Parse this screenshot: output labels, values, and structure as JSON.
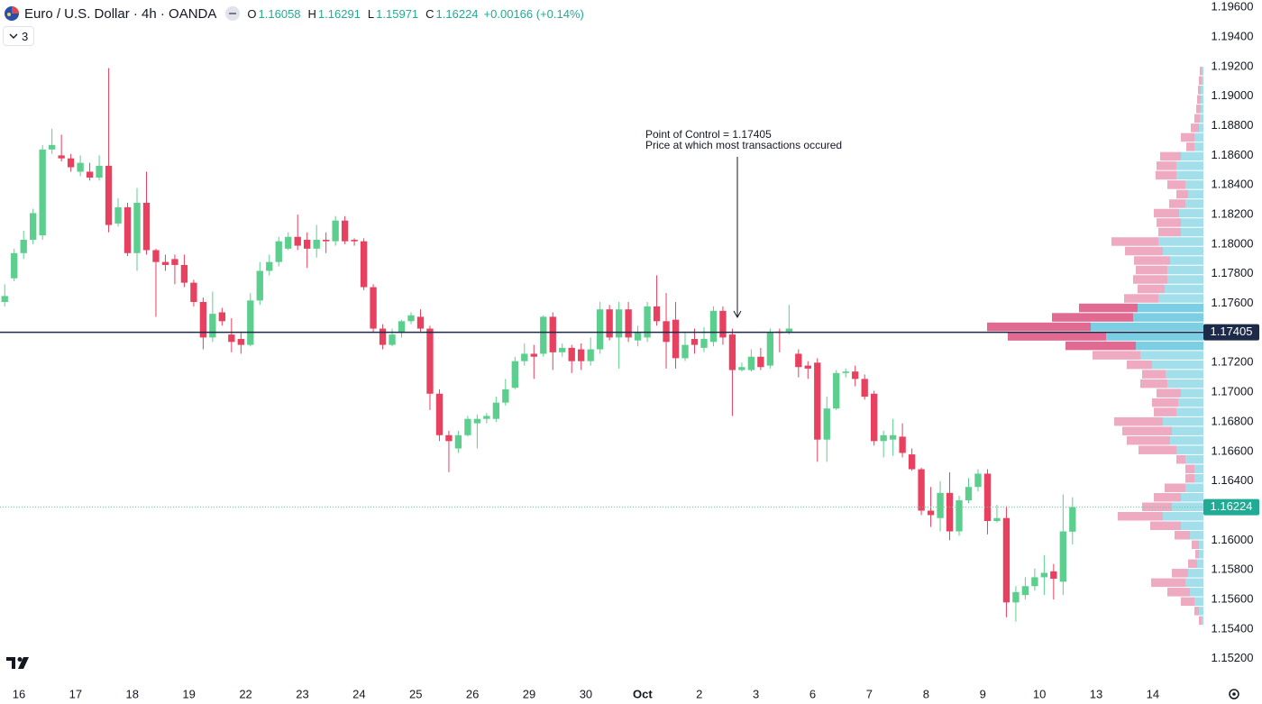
{
  "header": {
    "symbol": "Euro / U.S. Dollar · 4h · OANDA",
    "ohlc_labels": [
      "O",
      "H",
      "L",
      "C"
    ],
    "change": "+0.00166 (+0.14%)",
    "indicators_count": "3"
  },
  "chart_data": {
    "type": "candlestick",
    "up_color": "#5ccf8e",
    "down_color": "#e8405f",
    "xlim": [
      -0.5,
      126.85
    ],
    "ylim": [
      1.1504,
      1.1965
    ],
    "xticks": [
      {
        "value": 1.5,
        "label": "16"
      },
      {
        "value": 7.5,
        "label": "17"
      },
      {
        "value": 13.5,
        "label": "18"
      },
      {
        "value": 19.5,
        "label": "19"
      },
      {
        "value": 25.5,
        "label": "22"
      },
      {
        "value": 31.5,
        "label": "23"
      },
      {
        "value": 37.5,
        "label": "24"
      },
      {
        "value": 43.5,
        "label": "25"
      },
      {
        "value": 49.5,
        "label": "26"
      },
      {
        "value": 55.5,
        "label": "29"
      },
      {
        "value": 61.5,
        "label": "30"
      },
      {
        "value": 67.5,
        "label": "Oct"
      },
      {
        "value": 73.5,
        "label": "2"
      },
      {
        "value": 79.5,
        "label": "3"
      },
      {
        "value": 85.5,
        "label": "6"
      },
      {
        "value": 91.5,
        "label": "7"
      },
      {
        "value": 97.5,
        "label": "8"
      },
      {
        "value": 103.5,
        "label": "9"
      },
      {
        "value": 109.5,
        "label": "10"
      },
      {
        "value": 115.5,
        "label": "13"
      },
      {
        "value": 121.5,
        "label": "14"
      }
    ],
    "yticks": [
      {
        "value": 1.196,
        "label": "1.19600"
      },
      {
        "value": 1.194,
        "label": "1.19400"
      },
      {
        "value": 1.192,
        "label": "1.19200"
      },
      {
        "value": 1.19,
        "label": "1.19000"
      },
      {
        "value": 1.188,
        "label": "1.18800"
      },
      {
        "value": 1.186,
        "label": "1.18600"
      },
      {
        "value": 1.184,
        "label": "1.18400"
      },
      {
        "value": 1.182,
        "label": "1.18200"
      },
      {
        "value": 1.18,
        "label": "1.18000"
      },
      {
        "value": 1.178,
        "label": "1.17800"
      },
      {
        "value": 1.176,
        "label": "1.17600"
      },
      {
        "value": 1.172,
        "label": "1.17200"
      },
      {
        "value": 1.17,
        "label": "1.17000"
      },
      {
        "value": 1.168,
        "label": "1.16800"
      },
      {
        "value": 1.166,
        "label": "1.16600"
      },
      {
        "value": 1.164,
        "label": "1.16400"
      },
      {
        "value": 1.16,
        "label": "1.16000"
      },
      {
        "value": 1.158,
        "label": "1.15800"
      },
      {
        "value": 1.156,
        "label": "1.15600"
      },
      {
        "value": 1.154,
        "label": "1.15400"
      },
      {
        "value": 1.152,
        "label": "1.15200"
      }
    ],
    "grid": false,
    "open": [
      1.1761,
      1.1777,
      1.1794,
      1.1803,
      1.1806,
      1.1864,
      1.186,
      1.1858,
      1.1849,
      1.1849,
      1.1845,
      1.1853,
      1.1814,
      1.1825,
      1.1794,
      1.1828,
      1.1796,
      1.1788,
      1.179,
      1.1786,
      1.1774,
      1.1761,
      1.1737,
      1.1754,
      1.1739,
      1.1736,
      1.1732,
      1.1762,
      1.1782,
      1.1788,
      1.1797,
      1.1805,
      1.1803,
      1.1797,
      1.1803,
      1.1802,
      1.1816,
      1.1803,
      1.1802,
      1.1771,
      1.1743,
      1.1732,
      1.174,
      1.1748,
      1.1751,
      1.1743,
      1.1699,
      1.1671,
      1.1662,
      1.1671,
      1.1679,
      1.1682,
      1.1682,
      1.1693,
      1.1703,
      1.1721,
      1.1726,
      1.1726,
      1.1751,
      1.1727,
      1.173,
      1.1729,
      1.1721,
      1.1729,
      1.1756,
      1.1737,
      1.1756,
      1.1735,
      1.1737,
      1.1758,
      1.1748,
      1.1749,
      1.1723,
      1.1736,
      1.173,
      1.1734,
      1.1755,
      1.1739,
      1.1715,
      1.1715,
      1.1724,
      1.1718,
      1.1741,
      1.1741,
      1.1726,
      1.1718,
      1.172,
      1.1668,
      1.1689,
      1.1713,
      1.1714,
      1.1709,
      1.1699,
      1.1667,
      1.1668,
      1.167,
      1.1658,
      1.1648,
      1.162,
      1.1615,
      1.1632,
      1.1606,
      1.1627,
      1.1636,
      1.1645,
      1.1613,
      1.1615,
      1.1558,
      1.1563,
      1.1569,
      1.1575,
      1.1579,
      1.1572,
      1.16058
    ],
    "high": [
      1.1773,
      1.1797,
      1.1809,
      1.1824,
      1.1867,
      1.1878,
      1.1874,
      1.1861,
      1.186,
      1.1855,
      1.186,
      1.1919,
      1.1831,
      1.1828,
      1.1838,
      1.1849,
      1.1797,
      1.1793,
      1.1793,
      1.1793,
      1.1776,
      1.1764,
      1.1768,
      1.1757,
      1.175,
      1.174,
      1.1767,
      1.1788,
      1.1793,
      1.1805,
      1.1808,
      1.182,
      1.1808,
      1.1813,
      1.1808,
      1.1819,
      1.1819,
      1.1804,
      1.1804,
      1.1773,
      1.1746,
      1.1743,
      1.1749,
      1.1754,
      1.1756,
      1.1745,
      1.1702,
      1.1674,
      1.1674,
      1.1684,
      1.1685,
      1.1686,
      1.1697,
      1.1709,
      1.1724,
      1.1733,
      1.1732,
      1.1752,
      1.1754,
      1.1733,
      1.1732,
      1.1733,
      1.1737,
      1.1761,
      1.1759,
      1.1761,
      1.1761,
      1.1745,
      1.1761,
      1.1779,
      1.1767,
      1.1761,
      1.174,
      1.1743,
      1.1744,
      1.1758,
      1.1758,
      1.1743,
      1.172,
      1.1729,
      1.173,
      1.1743,
      1.1743,
      1.1759,
      1.1729,
      1.1721,
      1.1723,
      1.1697,
      1.1715,
      1.1716,
      1.1718,
      1.1712,
      1.1701,
      1.1674,
      1.1682,
      1.1679,
      1.1662,
      1.1649,
      1.1636,
      1.164,
      1.1646,
      1.163,
      1.1642,
      1.1648,
      1.1648,
      1.1624,
      1.1623,
      1.1569,
      1.1575,
      1.1581,
      1.159,
      1.1584,
      1.1631,
      1.16291
    ],
    "low": [
      1.1758,
      1.1775,
      1.179,
      1.18,
      1.1803,
      1.1861,
      1.1856,
      1.1849,
      1.1846,
      1.1843,
      1.1843,
      1.1808,
      1.1812,
      1.1792,
      1.1782,
      1.1793,
      1.1751,
      1.1782,
      1.1773,
      1.1771,
      1.1758,
      1.1729,
      1.1734,
      1.1745,
      1.1727,
      1.1726,
      1.1731,
      1.1759,
      1.1779,
      1.1785,
      1.1796,
      1.1796,
      1.1784,
      1.1791,
      1.1794,
      1.1799,
      1.18,
      1.1799,
      1.1769,
      1.174,
      1.1729,
      1.1731,
      1.1737,
      1.1746,
      1.1741,
      1.1688,
      1.1667,
      1.1646,
      1.1659,
      1.167,
      1.1662,
      1.1679,
      1.168,
      1.1691,
      1.1702,
      1.1718,
      1.1709,
      1.1724,
      1.1715,
      1.1724,
      1.1713,
      1.1715,
      1.1718,
      1.1726,
      1.1735,
      1.1716,
      1.1734,
      1.1731,
      1.1734,
      1.1745,
      1.1716,
      1.1716,
      1.1721,
      1.1726,
      1.1727,
      1.1731,
      1.1732,
      1.1684,
      1.1714,
      1.1714,
      1.1715,
      1.1716,
      1.1727,
      1.1739,
      1.171,
      1.1709,
      1.1653,
      1.1653,
      1.1688,
      1.171,
      1.1704,
      1.1695,
      1.1664,
      1.1656,
      1.1657,
      1.1656,
      1.1647,
      1.1617,
      1.1609,
      1.1606,
      1.16,
      1.1603,
      1.1625,
      1.1633,
      1.1604,
      1.1612,
      1.1548,
      1.1545,
      1.156,
      1.1566,
      1.1563,
      1.156,
      1.1563,
      1.15971
    ],
    "close": [
      1.1765,
      1.1794,
      1.1803,
      1.1821,
      1.1864,
      1.1867,
      1.1858,
      1.1852,
      1.1855,
      1.1845,
      1.1853,
      1.1813,
      1.1825,
      1.1794,
      1.1828,
      1.1796,
      1.1788,
      1.1786,
      1.1786,
      1.1774,
      1.1761,
      1.1737,
      1.1753,
      1.1748,
      1.1734,
      1.1732,
      1.1762,
      1.1782,
      1.1788,
      1.1802,
      1.1805,
      1.1799,
      1.1797,
      1.1803,
      1.1802,
      1.1816,
      1.1802,
      1.1802,
      1.1771,
      1.1743,
      1.1732,
      1.1739,
      1.1748,
      1.1752,
      1.1743,
      1.1699,
      1.1671,
      1.1667,
      1.1671,
      1.1682,
      1.1682,
      1.1684,
      1.1693,
      1.1702,
      1.1721,
      1.1726,
      1.1724,
      1.1751,
      1.1727,
      1.173,
      1.1721,
      1.1721,
      1.1729,
      1.1756,
      1.1737,
      1.1756,
      1.1737,
      1.174,
      1.1758,
      1.1748,
      1.1734,
      1.1723,
      1.1732,
      1.1732,
      1.1736,
      1.1755,
      1.1737,
      1.1715,
      1.1717,
      1.1724,
      1.1717,
      1.174,
      1.174,
      1.1743,
      1.1717,
      1.1716,
      1.1668,
      1.1689,
      1.1713,
      1.1714,
      1.1709,
      1.1697,
      1.1667,
      1.1671,
      1.1671,
      1.1659,
      1.1648,
      1.162,
      1.1617,
      1.1632,
      1.1606,
      1.1627,
      1.1636,
      1.1645,
      1.1613,
      1.1615,
      1.1558,
      1.1565,
      1.1569,
      1.1575,
      1.1578,
      1.1574,
      1.1606,
      1.16224
    ],
    "poc": 1.17405,
    "poc_color": "#1e2a4a",
    "annotation": [
      "Point of Control = 1.17405",
      "Price at which most transactions occured"
    ],
    "volume_profile": {
      "up_color": "#a3dfea",
      "down_color": "#eeaac1",
      "value_area_up_color": "#7ccfe2",
      "value_area_down_color": "#e06a92",
      "value_area": [
        1.17314,
        1.1757
      ],
      "levels": [
        1.1917,
        1.19106,
        1.19042,
        1.18978,
        1.18914,
        1.1885,
        1.18786,
        1.18722,
        1.18658,
        1.18594,
        1.1853,
        1.18466,
        1.18402,
        1.18338,
        1.18274,
        1.1821,
        1.18146,
        1.18082,
        1.18018,
        1.17954,
        1.1789,
        1.17826,
        1.17762,
        1.17698,
        1.17634,
        1.1757,
        1.17506,
        1.17442,
        1.17378,
        1.17314,
        1.1725,
        1.17186,
        1.17122,
        1.17058,
        1.16994,
        1.1693,
        1.16866,
        1.16802,
        1.16738,
        1.16674,
        1.1661,
        1.16546,
        1.16482,
        1.16418,
        1.16354,
        1.1629,
        1.16226,
        1.16162,
        1.16098,
        1.16034,
        1.1597,
        1.15906,
        1.15842,
        1.15778,
        1.15714,
        1.1565,
        1.15586,
        1.15522,
        1.15458
      ],
      "up": [
        2,
        2,
        3,
        3,
        3,
        4,
        5,
        10,
        10,
        25,
        30,
        30,
        20,
        17,
        20,
        27,
        25,
        25,
        50,
        45,
        37,
        40,
        40,
        43,
        50,
        73,
        78,
        125,
        108,
        75,
        70,
        57,
        42,
        40,
        25,
        28,
        30,
        45,
        35,
        37,
        30,
        20,
        10,
        10,
        20,
        25,
        35,
        45,
        25,
        15,
        5,
        5,
        7,
        17,
        20,
        15,
        10,
        5,
        2
      ],
      "down": [
        2,
        3,
        3,
        4,
        5,
        6,
        9,
        15,
        9,
        23,
        22,
        23,
        20,
        13,
        18,
        28,
        27,
        25,
        52,
        42,
        40,
        35,
        38,
        30,
        38,
        65,
        90,
        115,
        109,
        78,
        53,
        28,
        26,
        30,
        27,
        29,
        25,
        54,
        55,
        48,
        42,
        10,
        10,
        10,
        23,
        30,
        33,
        50,
        34,
        17,
        8,
        4,
        10,
        18,
        38,
        25,
        15,
        5,
        3
      ]
    }
  }
}
